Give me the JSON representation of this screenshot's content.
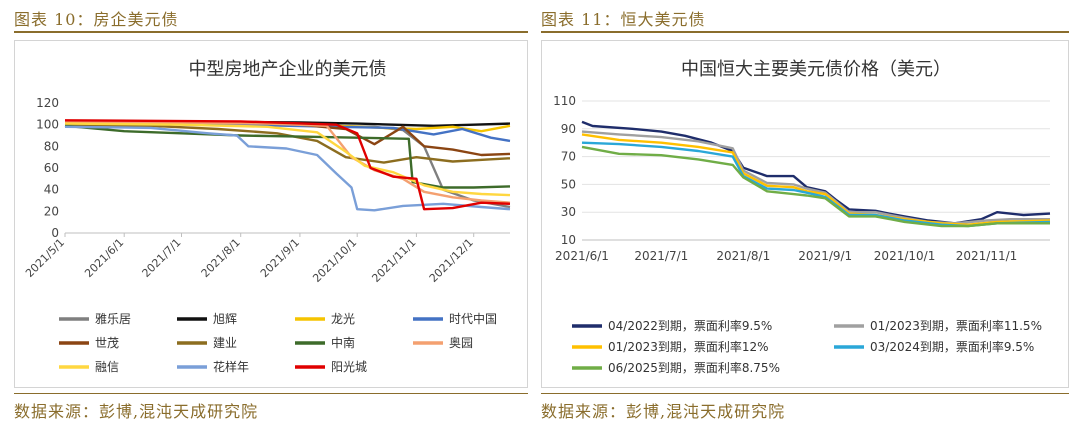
{
  "left": {
    "caption": "图表 10：房企美元债",
    "source": "数据来源：彭博,混沌天成研究院",
    "chart_data": {
      "type": "line",
      "title": "中型房地产企业的美元债",
      "x_ticks": [
        "2021/5/1",
        "2021/6/1",
        "2021/7/1",
        "2021/8/1",
        "2021/9/1",
        "2021/10/1",
        "2021/11/1",
        "2021/12/1"
      ],
      "y_ticks": [
        "0",
        "20",
        "40",
        "60",
        "80",
        "100",
        "120"
      ],
      "ylim": [
        0,
        120
      ],
      "x_range": [
        "2021-05-01",
        "2021-12-20"
      ],
      "grid": false,
      "legend_position": "bottom",
      "series": [
        {
          "name": "雅乐居",
          "color": "#7f7f7f",
          "points": [
            [
              "2021-05-01",
              101
            ],
            [
              "2021-06-15",
              101
            ],
            [
              "2021-08-01",
              100
            ],
            [
              "2021-09-15",
              99
            ],
            [
              "2021-10-10",
              98
            ],
            [
              "2021-10-25",
              95
            ],
            [
              "2021-11-05",
              80
            ],
            [
              "2021-11-15",
              40
            ],
            [
              "2021-12-01",
              30
            ],
            [
              "2021-12-20",
              24
            ]
          ]
        },
        {
          "name": "旭辉",
          "color": "#111111",
          "points": [
            [
              "2021-05-01",
              103
            ],
            [
              "2021-07-01",
              103
            ],
            [
              "2021-09-01",
              102
            ],
            [
              "2021-10-01",
              101
            ],
            [
              "2021-10-20",
              100
            ],
            [
              "2021-11-10",
              99
            ],
            [
              "2021-12-01",
              100
            ],
            [
              "2021-12-20",
              101
            ]
          ]
        },
        {
          "name": "龙光",
          "color": "#f5c400",
          "points": [
            [
              "2021-05-01",
              102
            ],
            [
              "2021-08-01",
              101
            ],
            [
              "2021-09-20",
              99
            ],
            [
              "2021-10-15",
              97
            ],
            [
              "2021-11-01",
              96
            ],
            [
              "2021-11-20",
              98
            ],
            [
              "2021-12-05",
              94
            ],
            [
              "2021-12-20",
              99
            ]
          ]
        },
        {
          "name": "时代中国",
          "color": "#4472c4",
          "points": [
            [
              "2021-05-01",
              101
            ],
            [
              "2021-08-01",
              100
            ],
            [
              "2021-09-20",
              98
            ],
            [
              "2021-10-20",
              97
            ],
            [
              "2021-11-10",
              91
            ],
            [
              "2021-11-25",
              96
            ],
            [
              "2021-12-10",
              88
            ],
            [
              "2021-12-20",
              85
            ]
          ]
        },
        {
          "name": "世茂",
          "color": "#8b4513",
          "points": [
            [
              "2021-05-01",
              103
            ],
            [
              "2021-08-01",
              102
            ],
            [
              "2021-09-01",
              100
            ],
            [
              "2021-09-25",
              96
            ],
            [
              "2021-10-10",
              82
            ],
            [
              "2021-10-25",
              98
            ],
            [
              "2021-11-05",
              80
            ],
            [
              "2021-11-20",
              77
            ],
            [
              "2021-12-05",
              72
            ],
            [
              "2021-12-20",
              73
            ]
          ]
        },
        {
          "name": "建业",
          "color": "#8c6d1f",
          "points": [
            [
              "2021-05-01",
              100
            ],
            [
              "2021-06-15",
              99
            ],
            [
              "2021-07-20",
              96
            ],
            [
              "2021-08-20",
              92
            ],
            [
              "2021-09-10",
              85
            ],
            [
              "2021-09-25",
              70
            ],
            [
              "2021-10-15",
              65
            ],
            [
              "2021-11-01",
              70
            ],
            [
              "2021-11-20",
              66
            ],
            [
              "2021-12-10",
              68
            ],
            [
              "2021-12-20",
              69
            ]
          ]
        },
        {
          "name": "中南",
          "color": "#3d6b2a",
          "points": [
            [
              "2021-05-01",
              99
            ],
            [
              "2021-06-01",
              94
            ],
            [
              "2021-07-01",
              92
            ],
            [
              "2021-08-01",
              90
            ],
            [
              "2021-09-01",
              89
            ],
            [
              "2021-10-01",
              88
            ],
            [
              "2021-10-28",
              87
            ],
            [
              "2021-10-30",
              47
            ],
            [
              "2021-11-15",
              42
            ],
            [
              "2021-12-01",
              42
            ],
            [
              "2021-12-20",
              43
            ]
          ]
        },
        {
          "name": "奥园",
          "color": "#f4a070",
          "points": [
            [
              "2021-05-01",
              102
            ],
            [
              "2021-07-01",
              102
            ],
            [
              "2021-08-15",
              101
            ],
            [
              "2021-09-15",
              99
            ],
            [
              "2021-09-28",
              70
            ],
            [
              "2021-10-10",
              58
            ],
            [
              "2021-10-25",
              50
            ],
            [
              "2021-11-05",
              38
            ],
            [
              "2021-11-20",
              33
            ],
            [
              "2021-12-05",
              30
            ],
            [
              "2021-12-20",
              28
            ]
          ]
        },
        {
          "name": "融信",
          "color": "#ffd740",
          "points": [
            [
              "2021-05-01",
              101
            ],
            [
              "2021-07-01",
              100
            ],
            [
              "2021-08-15",
              98
            ],
            [
              "2021-09-10",
              93
            ],
            [
              "2021-09-25",
              75
            ],
            [
              "2021-10-05",
              62
            ],
            [
              "2021-10-20",
              56
            ],
            [
              "2021-11-05",
              44
            ],
            [
              "2021-11-20",
              38
            ],
            [
              "2021-12-05",
              36
            ],
            [
              "2021-12-20",
              35
            ]
          ]
        },
        {
          "name": "花样年",
          "color": "#7a9fd8",
          "points": [
            [
              "2021-05-01",
              98
            ],
            [
              "2021-06-15",
              97
            ],
            [
              "2021-07-15",
              92
            ],
            [
              "2021-07-30",
              90
            ],
            [
              "2021-08-05",
              80
            ],
            [
              "2021-08-25",
              78
            ],
            [
              "2021-09-10",
              72
            ],
            [
              "2021-09-20",
              55
            ],
            [
              "2021-09-28",
              42
            ],
            [
              "2021-10-01",
              22
            ],
            [
              "2021-10-10",
              21
            ],
            [
              "2021-10-25",
              25
            ],
            [
              "2021-11-15",
              27
            ],
            [
              "2021-12-05",
              24
            ],
            [
              "2021-12-20",
              22
            ]
          ]
        },
        {
          "name": "阳光城",
          "color": "#e00000",
          "points": [
            [
              "2021-05-01",
              104
            ],
            [
              "2021-08-01",
              103
            ],
            [
              "2021-09-20",
              100
            ],
            [
              "2021-10-01",
              92
            ],
            [
              "2021-10-08",
              60
            ],
            [
              "2021-10-20",
              52
            ],
            [
              "2021-11-01",
              50
            ],
            [
              "2021-11-05",
              22
            ],
            [
              "2021-11-20",
              23
            ],
            [
              "2021-12-05",
              28
            ],
            [
              "2021-12-20",
              27
            ]
          ]
        }
      ]
    }
  },
  "right": {
    "caption": "图表 11：恒大美元债",
    "source": "数据来源：彭博,混沌天成研究院",
    "chart_data": {
      "type": "line",
      "title": "中国恒大主要美元债价格（美元）",
      "x_ticks": [
        "2021/6/1",
        "2021/7/1",
        "2021/8/1",
        "2021/9/1",
        "2021/10/1",
        "2021/11/1"
      ],
      "y_ticks": [
        "10",
        "30",
        "50",
        "70",
        "90",
        "110"
      ],
      "ylim": [
        10,
        110
      ],
      "x_range": [
        "2021-06-01",
        "2021-11-25"
      ],
      "grid": true,
      "legend_position": "bottom",
      "series": [
        {
          "name": "04/2022到期，票面利率9.5%",
          "color": "#1f2d6b",
          "points": [
            [
              "2021-06-01",
              95
            ],
            [
              "2021-06-05",
              92
            ],
            [
              "2021-06-20",
              90
            ],
            [
              "2021-07-01",
              88
            ],
            [
              "2021-07-10",
              85
            ],
            [
              "2021-07-20",
              80
            ],
            [
              "2021-07-28",
              74
            ],
            [
              "2021-08-01",
              62
            ],
            [
              "2021-08-10",
              56
            ],
            [
              "2021-08-20",
              56
            ],
            [
              "2021-08-25",
              48
            ],
            [
              "2021-09-01",
              45
            ],
            [
              "2021-09-05",
              39
            ],
            [
              "2021-09-10",
              32
            ],
            [
              "2021-09-20",
              31
            ],
            [
              "2021-09-25",
              29
            ],
            [
              "2021-10-01",
              27
            ],
            [
              "2021-10-10",
              24
            ],
            [
              "2021-10-20",
              22
            ],
            [
              "2021-10-30",
              25
            ],
            [
              "2021-11-05",
              30
            ],
            [
              "2021-11-15",
              28
            ],
            [
              "2021-11-25",
              29
            ]
          ]
        },
        {
          "name": "01/2023到期，票面利率11.5%",
          "color": "#a0a0a0",
          "points": [
            [
              "2021-06-01",
              88
            ],
            [
              "2021-06-15",
              86
            ],
            [
              "2021-07-01",
              84
            ],
            [
              "2021-07-15",
              81
            ],
            [
              "2021-07-28",
              76
            ],
            [
              "2021-08-01",
              60
            ],
            [
              "2021-08-10",
              51
            ],
            [
              "2021-08-20",
              50
            ],
            [
              "2021-08-25",
              47
            ],
            [
              "2021-09-01",
              44
            ],
            [
              "2021-09-10",
              30
            ],
            [
              "2021-09-20",
              30
            ],
            [
              "2021-10-01",
              26
            ],
            [
              "2021-10-10",
              23
            ],
            [
              "2021-10-20",
              22
            ],
            [
              "2021-11-01",
              24
            ],
            [
              "2021-11-10",
              25
            ],
            [
              "2021-11-25",
              25
            ]
          ]
        },
        {
          "name": "01/2023到期，票面利率12%",
          "color": "#ffc000",
          "points": [
            [
              "2021-06-01",
              86
            ],
            [
              "2021-06-15",
              82
            ],
            [
              "2021-07-01",
              80
            ],
            [
              "2021-07-15",
              77
            ],
            [
              "2021-07-28",
              73
            ],
            [
              "2021-08-01",
              58
            ],
            [
              "2021-08-10",
              49
            ],
            [
              "2021-08-20",
              48
            ],
            [
              "2021-08-25",
              45
            ],
            [
              "2021-09-01",
              43
            ],
            [
              "2021-09-10",
              29
            ],
            [
              "2021-09-20",
              28
            ],
            [
              "2021-10-01",
              25
            ],
            [
              "2021-10-15",
              22
            ],
            [
              "2021-10-25",
              21
            ],
            [
              "2021-11-05",
              23
            ],
            [
              "2021-11-25",
              24
            ]
          ]
        },
        {
          "name": "03/2024到期，票面利率9.5%",
          "color": "#2aa7d8",
          "points": [
            [
              "2021-06-01",
              80
            ],
            [
              "2021-06-15",
              79
            ],
            [
              "2021-07-01",
              77
            ],
            [
              "2021-07-15",
              74
            ],
            [
              "2021-07-28",
              70
            ],
            [
              "2021-08-01",
              56
            ],
            [
              "2021-08-10",
              47
            ],
            [
              "2021-08-20",
              46
            ],
            [
              "2021-08-25",
              44
            ],
            [
              "2021-09-01",
              41
            ],
            [
              "2021-09-10",
              28
            ],
            [
              "2021-09-20",
              28
            ],
            [
              "2021-10-01",
              24
            ],
            [
              "2021-10-15",
              21
            ],
            [
              "2021-10-25",
              20
            ],
            [
              "2021-11-05",
              22
            ],
            [
              "2021-11-25",
              23
            ]
          ]
        },
        {
          "name": "06/2025到期，票面利率8.75%",
          "color": "#70ad47",
          "points": [
            [
              "2021-06-01",
              77
            ],
            [
              "2021-06-15",
              72
            ],
            [
              "2021-07-01",
              71
            ],
            [
              "2021-07-15",
              68
            ],
            [
              "2021-07-28",
              64
            ],
            [
              "2021-08-01",
              55
            ],
            [
              "2021-08-10",
              45
            ],
            [
              "2021-08-20",
              43
            ],
            [
              "2021-08-25",
              42
            ],
            [
              "2021-09-01",
              40
            ],
            [
              "2021-09-10",
              27
            ],
            [
              "2021-09-20",
              27
            ],
            [
              "2021-10-01",
              23
            ],
            [
              "2021-10-15",
              20
            ],
            [
              "2021-10-25",
              20
            ],
            [
              "2021-11-05",
              22
            ],
            [
              "2021-11-25",
              22
            ]
          ]
        }
      ]
    }
  }
}
